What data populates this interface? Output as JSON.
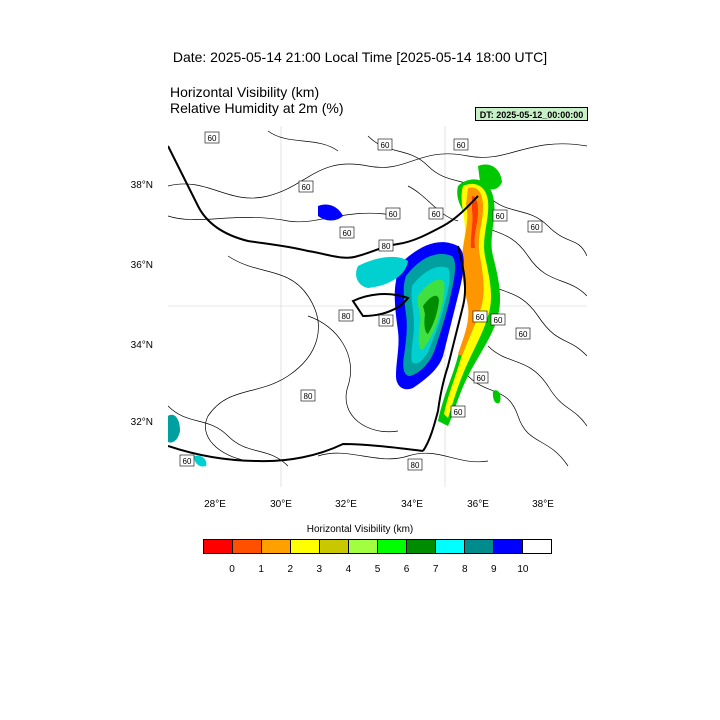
{
  "header": {
    "title": "Date: 2025-05-14  21:00 Local Time [2025-05-14  18:00 UTC]",
    "field_line_1": "Horizontal Visibility   (km)",
    "field_line_2": "Relative Humidity at 2m   (%)",
    "dt_badge": "DT: 2025-05-12_00:00:00",
    "dt_badge_color": "#c8f0c8"
  },
  "map": {
    "lat_labels": [
      "38°N",
      "36°N",
      "34°N",
      "32°N"
    ],
    "lon_labels": [
      "28°E",
      "30°E",
      "32°E",
      "34°E",
      "36°E",
      "38°E"
    ],
    "contour_labels": [
      "60",
      "60",
      "60",
      "60",
      "60",
      "60",
      "60",
      "60",
      "60",
      "80",
      "80",
      "80",
      "60",
      "60",
      "60",
      "60",
      "80",
      "60",
      "60",
      "80"
    ],
    "coastline_color": "#000000",
    "gridlines": true
  },
  "colorbar": {
    "title": "Horizontal Visibility  (km)",
    "colors": [
      "#ff0000",
      "#ff5000",
      "#ffa000",
      "#ffff00",
      "#c8c800",
      "#a0ff40",
      "#00ff00",
      "#008c00",
      "#00ffff",
      "#008c8c",
      "#0000ff",
      "#ffffff"
    ],
    "tick_labels": [
      "0",
      "1",
      "2",
      "3",
      "4",
      "5",
      "6",
      "7",
      "8",
      "9",
      "10"
    ]
  }
}
